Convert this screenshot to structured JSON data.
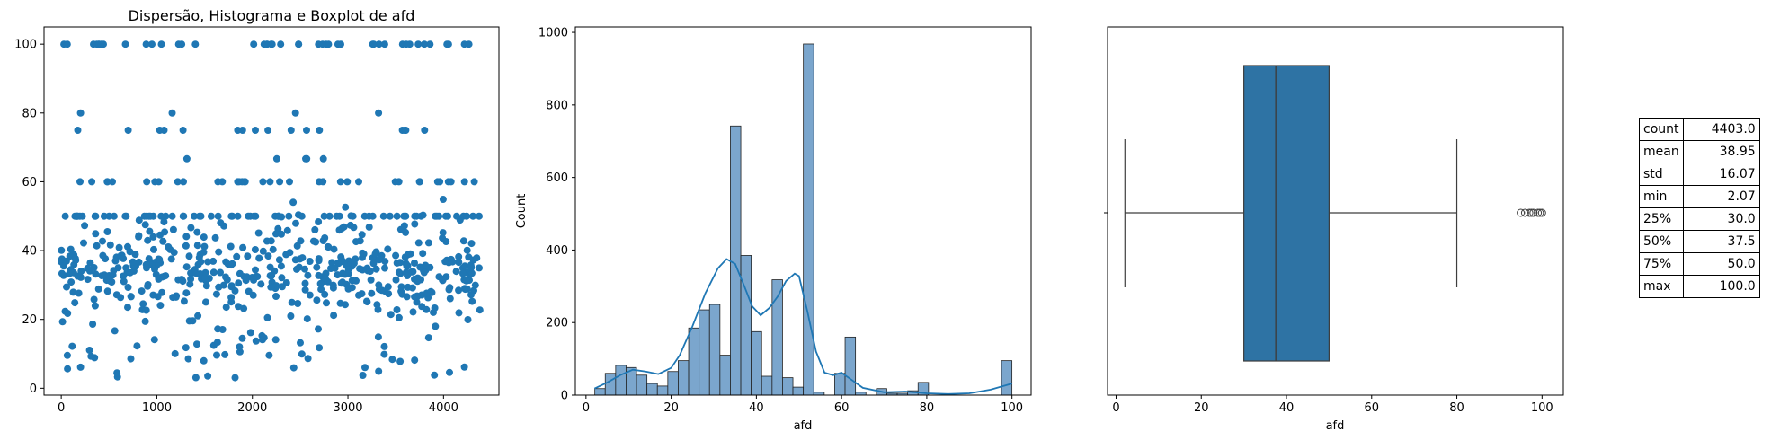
{
  "chart_data": [
    {
      "type": "scatter",
      "title": "Dispersão, Histograma e Boxplot de afd",
      "xlabel": "",
      "ylabel": "",
      "xlim": [
        -180,
        4580
      ],
      "ylim": [
        -2,
        105
      ],
      "xticks": [
        "0",
        "1000",
        "2000",
        "3000",
        "4000"
      ],
      "yticks": [
        "0",
        "20",
        "40",
        "60",
        "80",
        "100"
      ],
      "xtick_values": [
        0,
        1000,
        2000,
        3000,
        4000
      ],
      "ytick_values": [
        0,
        20,
        40,
        60,
        80,
        100
      ],
      "n_points": 4403,
      "color": "#1f77b4",
      "grid": false
    },
    {
      "type": "bar",
      "subtype": "histogram_with_kde",
      "title": "",
      "xlabel": "afd",
      "ylabel": "Count",
      "xlim": [
        -2.5,
        104.5
      ],
      "ylim": [
        0,
        1015
      ],
      "xticks": [
        "0",
        "20",
        "40",
        "60",
        "80",
        "100"
      ],
      "yticks": [
        "0",
        "200",
        "400",
        "600",
        "800",
        "1000"
      ],
      "xtick_values": [
        0,
        20,
        40,
        60,
        80,
        100
      ],
      "ytick_values": [
        0,
        200,
        400,
        600,
        800,
        1000
      ],
      "bin_start": 2.07,
      "bin_width": 2.448,
      "counts": [
        18,
        60,
        82,
        76,
        55,
        32,
        25,
        65,
        95,
        185,
        235,
        250,
        110,
        742,
        385,
        175,
        52,
        318,
        48,
        22,
        968,
        8,
        0,
        60,
        160,
        8,
        0,
        18,
        5,
        5,
        12,
        35,
        0,
        0,
        0,
        0,
        0,
        0,
        0,
        95
      ],
      "kde_x": [
        2,
        5,
        8,
        11,
        14,
        17,
        20,
        22,
        25,
        28,
        31,
        33,
        35,
        37,
        39,
        41,
        43,
        45,
        47,
        49,
        50,
        52,
        54,
        56,
        58,
        60,
        62,
        65,
        70,
        75,
        80,
        85,
        90,
        95,
        100
      ],
      "kde_y": [
        18,
        35,
        55,
        70,
        65,
        58,
        75,
        110,
        190,
        280,
        350,
        375,
        362,
        305,
        245,
        220,
        240,
        272,
        315,
        335,
        328,
        230,
        120,
        62,
        55,
        62,
        45,
        20,
        8,
        10,
        5,
        3,
        5,
        15,
        32
      ],
      "fill_color": "#7ba6cd",
      "line_color": "#1f77b4",
      "grid": false
    },
    {
      "type": "boxplot",
      "title": "",
      "xlabel": "afd",
      "ylabel": "",
      "xlim": [
        -2,
        105
      ],
      "xticks": [
        "0",
        "20",
        "40",
        "60",
        "80",
        "100"
      ],
      "xtick_values": [
        0,
        20,
        40,
        60,
        80,
        100
      ],
      "whisker_low": 2.07,
      "q1": 30.0,
      "median": 37.5,
      "q3": 50.0,
      "whisker_high": 80.0,
      "outliers": [
        95,
        96,
        97,
        97.5,
        98,
        99,
        99.5,
        100
      ],
      "box_color": "#2e73a4",
      "grid": false
    },
    {
      "type": "table",
      "rows": [
        {
          "key": "count",
          "value": "4403.0"
        },
        {
          "key": "mean",
          "value": "38.95"
        },
        {
          "key": "std",
          "value": "16.07"
        },
        {
          "key": "min",
          "value": "2.07"
        },
        {
          "key": "25%",
          "value": "30.0"
        },
        {
          "key": "50%",
          "value": "37.5"
        },
        {
          "key": "75%",
          "value": "50.0"
        },
        {
          "key": "max",
          "value": "100.0"
        }
      ]
    }
  ]
}
